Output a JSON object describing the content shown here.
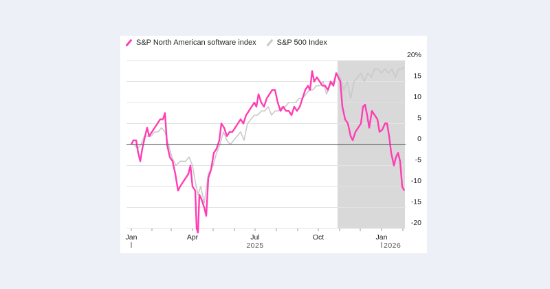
{
  "colors": {
    "software": "#ff3db4",
    "sp500": "#c9c9c9",
    "shade": "#d9d9d9",
    "zero_line": "#666666",
    "grid": "#e3e3e3"
  },
  "chart_data": {
    "type": "line",
    "title": "",
    "xlabel": "",
    "ylabel": "",
    "x_range": [
      "2025-01-02",
      "2026-02-03"
    ],
    "ylim": [
      -20,
      20
    ],
    "y_ticks": [
      20,
      15,
      10,
      5,
      0,
      -5,
      -10,
      -15,
      -20
    ],
    "y_tick_labels": [
      "20%",
      "15",
      "10",
      "5",
      "0",
      "-5",
      "-10",
      "-15",
      "-20"
    ],
    "x_ticks": [
      {
        "date": "2025-01-02",
        "label": "Jan"
      },
      {
        "date": "2025-04-01",
        "label": "Apr"
      },
      {
        "date": "2025-07-01",
        "label": "Jul"
      },
      {
        "date": "2025-10-01",
        "label": "Oct"
      },
      {
        "date": "2026-01-01",
        "label": "Jan"
      }
    ],
    "year_labels": [
      {
        "date": "2025-07-01",
        "label": "2025"
      },
      {
        "date": "2026-01-01",
        "label": "2026"
      }
    ],
    "grid": true,
    "legend_position": "top-left",
    "shaded_period": [
      "2025-10-29",
      "2026-02-03"
    ],
    "series": [
      {
        "name": "S&P North American software index",
        "points": [
          [
            "2025-01-02",
            0
          ],
          [
            "2025-01-05",
            1
          ],
          [
            "2025-01-09",
            1
          ],
          [
            "2025-01-12",
            -2
          ],
          [
            "2025-01-15",
            -4
          ],
          [
            "2025-01-18",
            -1
          ],
          [
            "2025-01-22",
            2
          ],
          [
            "2025-01-25",
            4
          ],
          [
            "2025-01-28",
            2
          ],
          [
            "2025-02-01",
            3
          ],
          [
            "2025-02-05",
            4
          ],
          [
            "2025-02-09",
            5
          ],
          [
            "2025-02-13",
            6
          ],
          [
            "2025-02-17",
            6
          ],
          [
            "2025-02-20",
            7.5
          ],
          [
            "2025-02-23",
            0
          ],
          [
            "2025-02-27",
            -3
          ],
          [
            "2025-03-03",
            -4
          ],
          [
            "2025-03-07",
            -7
          ],
          [
            "2025-03-11",
            -11
          ],
          [
            "2025-03-14",
            -10
          ],
          [
            "2025-03-18",
            -9
          ],
          [
            "2025-03-22",
            -8
          ],
          [
            "2025-03-26",
            -7
          ],
          [
            "2025-03-29",
            -5
          ],
          [
            "2025-04-01",
            -10
          ],
          [
            "2025-04-05",
            -11
          ],
          [
            "2025-04-07",
            -20
          ],
          [
            "2025-04-09",
            -21
          ],
          [
            "2025-04-11",
            -12
          ],
          [
            "2025-04-14",
            -13
          ],
          [
            "2025-04-18",
            -15
          ],
          [
            "2025-04-21",
            -17
          ],
          [
            "2025-04-24",
            -8
          ],
          [
            "2025-04-28",
            -6
          ],
          [
            "2025-05-02",
            -2
          ],
          [
            "2025-05-06",
            -1
          ],
          [
            "2025-05-10",
            1
          ],
          [
            "2025-05-13",
            5
          ],
          [
            "2025-05-17",
            4
          ],
          [
            "2025-05-21",
            2
          ],
          [
            "2025-05-25",
            3
          ],
          [
            "2025-05-29",
            3
          ],
          [
            "2025-06-02",
            4
          ],
          [
            "2025-06-06",
            5
          ],
          [
            "2025-06-10",
            6
          ],
          [
            "2025-06-14",
            5
          ],
          [
            "2025-06-18",
            7
          ],
          [
            "2025-06-22",
            8
          ],
          [
            "2025-06-26",
            9
          ],
          [
            "2025-06-30",
            10
          ],
          [
            "2025-07-03",
            9
          ],
          [
            "2025-07-06",
            12
          ],
          [
            "2025-07-10",
            10
          ],
          [
            "2025-07-14",
            9
          ],
          [
            "2025-07-18",
            11
          ],
          [
            "2025-07-22",
            12
          ],
          [
            "2025-07-26",
            13
          ],
          [
            "2025-07-30",
            13
          ],
          [
            "2025-08-03",
            10
          ],
          [
            "2025-08-07",
            8
          ],
          [
            "2025-08-11",
            9
          ],
          [
            "2025-08-15",
            8
          ],
          [
            "2025-08-19",
            8
          ],
          [
            "2025-08-23",
            7
          ],
          [
            "2025-08-27",
            9
          ],
          [
            "2025-08-31",
            8
          ],
          [
            "2025-09-04",
            9
          ],
          [
            "2025-09-08",
            11
          ],
          [
            "2025-09-12",
            13
          ],
          [
            "2025-09-16",
            14
          ],
          [
            "2025-09-19",
            13
          ],
          [
            "2025-09-22",
            17.5
          ],
          [
            "2025-09-25",
            15
          ],
          [
            "2025-09-29",
            16
          ],
          [
            "2025-10-03",
            15
          ],
          [
            "2025-10-07",
            14
          ],
          [
            "2025-10-11",
            14
          ],
          [
            "2025-10-15",
            13
          ],
          [
            "2025-10-19",
            15
          ],
          [
            "2025-10-23",
            14
          ],
          [
            "2025-10-27",
            17
          ],
          [
            "2025-10-30",
            16
          ],
          [
            "2025-11-02",
            15
          ],
          [
            "2025-11-05",
            9
          ],
          [
            "2025-11-09",
            6
          ],
          [
            "2025-11-13",
            5
          ],
          [
            "2025-11-17",
            2
          ],
          [
            "2025-11-20",
            1
          ],
          [
            "2025-11-24",
            3
          ],
          [
            "2025-11-28",
            4
          ],
          [
            "2025-12-02",
            5
          ],
          [
            "2025-12-05",
            9
          ],
          [
            "2025-12-08",
            9.5
          ],
          [
            "2025-12-11",
            7
          ],
          [
            "2025-12-14",
            4
          ],
          [
            "2025-12-18",
            8
          ],
          [
            "2025-12-22",
            7
          ],
          [
            "2025-12-26",
            6
          ],
          [
            "2025-12-29",
            3
          ],
          [
            "2026-01-02",
            3.5
          ],
          [
            "2026-01-06",
            5
          ],
          [
            "2026-01-09",
            5
          ],
          [
            "2026-01-12",
            2
          ],
          [
            "2026-01-15",
            -2
          ],
          [
            "2026-01-19",
            -5
          ],
          [
            "2026-01-22",
            -3
          ],
          [
            "2026-01-25",
            -2
          ],
          [
            "2026-01-28",
            -4
          ],
          [
            "2026-01-31",
            -10
          ],
          [
            "2026-02-03",
            -11
          ]
        ]
      },
      {
        "name": "S&P 500 Index",
        "points": [
          [
            "2025-01-02",
            0
          ],
          [
            "2025-01-06",
            0
          ],
          [
            "2025-01-11",
            -1
          ],
          [
            "2025-01-16",
            0
          ],
          [
            "2025-01-21",
            2
          ],
          [
            "2025-01-26",
            2
          ],
          [
            "2025-01-31",
            2
          ],
          [
            "2025-02-05",
            3
          ],
          [
            "2025-02-10",
            3
          ],
          [
            "2025-02-15",
            4
          ],
          [
            "2025-02-20",
            3
          ],
          [
            "2025-02-25",
            0
          ],
          [
            "2025-03-02",
            -3
          ],
          [
            "2025-03-08",
            -5
          ],
          [
            "2025-03-14",
            -4
          ],
          [
            "2025-03-22",
            -4
          ],
          [
            "2025-03-27",
            -3
          ],
          [
            "2025-04-01",
            -5
          ],
          [
            "2025-04-04",
            -8
          ],
          [
            "2025-04-09",
            -12
          ],
          [
            "2025-04-13",
            -10
          ],
          [
            "2025-04-18",
            -14
          ],
          [
            "2025-04-24",
            -7
          ],
          [
            "2025-05-01",
            -5
          ],
          [
            "2025-05-06",
            -2
          ],
          [
            "2025-05-11",
            0
          ],
          [
            "2025-05-16",
            3
          ],
          [
            "2025-05-21",
            1
          ],
          [
            "2025-05-26",
            0
          ],
          [
            "2025-05-31",
            1
          ],
          [
            "2025-06-05",
            2
          ],
          [
            "2025-06-10",
            3
          ],
          [
            "2025-06-15",
            1
          ],
          [
            "2025-06-20",
            5
          ],
          [
            "2025-06-25",
            6
          ],
          [
            "2025-06-30",
            7
          ],
          [
            "2025-07-05",
            7
          ],
          [
            "2025-07-10",
            8
          ],
          [
            "2025-07-15",
            8
          ],
          [
            "2025-07-20",
            9
          ],
          [
            "2025-07-25",
            7
          ],
          [
            "2025-07-30",
            8
          ],
          [
            "2025-08-04",
            8
          ],
          [
            "2025-08-09",
            9
          ],
          [
            "2025-08-14",
            9
          ],
          [
            "2025-08-19",
            10
          ],
          [
            "2025-08-24",
            10
          ],
          [
            "2025-08-29",
            10
          ],
          [
            "2025-09-03",
            11
          ],
          [
            "2025-09-08",
            11
          ],
          [
            "2025-09-13",
            12
          ],
          [
            "2025-09-18",
            13
          ],
          [
            "2025-09-23",
            13
          ],
          [
            "2025-09-28",
            14
          ],
          [
            "2025-10-03",
            14
          ],
          [
            "2025-10-08",
            15
          ],
          [
            "2025-10-13",
            12
          ],
          [
            "2025-10-18",
            14
          ],
          [
            "2025-10-23",
            15
          ],
          [
            "2025-10-28",
            17
          ],
          [
            "2025-11-02",
            16
          ],
          [
            "2025-11-07",
            13
          ],
          [
            "2025-11-12",
            15
          ],
          [
            "2025-11-17",
            11
          ],
          [
            "2025-11-22",
            15
          ],
          [
            "2025-11-27",
            16
          ],
          [
            "2025-12-02",
            17
          ],
          [
            "2025-12-07",
            15
          ],
          [
            "2025-12-12",
            17
          ],
          [
            "2025-12-17",
            16
          ],
          [
            "2025-12-22",
            18
          ],
          [
            "2025-12-27",
            18
          ],
          [
            "2026-01-01",
            17
          ],
          [
            "2026-01-06",
            18
          ],
          [
            "2026-01-11",
            17
          ],
          [
            "2026-01-16",
            18
          ],
          [
            "2026-01-21",
            16
          ],
          [
            "2026-01-26",
            18
          ],
          [
            "2026-01-31",
            18
          ],
          [
            "2026-02-03",
            18.5
          ]
        ]
      }
    ]
  }
}
